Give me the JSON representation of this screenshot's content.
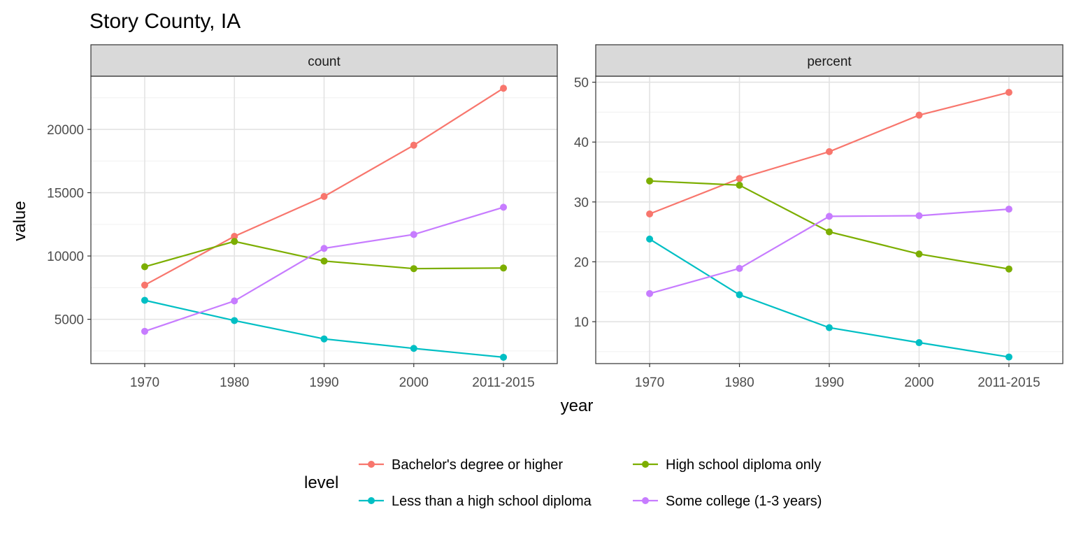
{
  "title": "Story County, IA",
  "chart_data": {
    "type": "line",
    "title": "Story County, IA",
    "xlabel": "year",
    "ylabel": "value",
    "categories": [
      "1970",
      "1980",
      "1990",
      "2000",
      "2011-2015"
    ],
    "legend": {
      "title": "level",
      "placement": "bottom",
      "items": [
        "Bachelor's degree or higher",
        "High school diploma only",
        "Less than a high school diploma",
        "Some college (1-3 years)"
      ]
    },
    "colors": {
      "Bachelor's degree or higher": "#f8766d",
      "High school diploma only": "#7cae00",
      "Less than a high school diploma": "#00bfc4",
      "Some college (1-3 years)": "#c77cff"
    },
    "grid": true,
    "panels": [
      {
        "strip": "count",
        "ylim": [
          1500,
          24200
        ],
        "yticks": [
          5000,
          10000,
          15000,
          20000
        ],
        "series": [
          {
            "name": "Bachelor's degree or higher",
            "values": [
              7700,
              11550,
              14700,
              18750,
              23250
            ]
          },
          {
            "name": "High school diploma only",
            "values": [
              9150,
              11150,
              9600,
              9000,
              9050
            ]
          },
          {
            "name": "Less than a high school diploma",
            "values": [
              6500,
              4900,
              3450,
              2700,
              2000
            ]
          },
          {
            "name": "Some college (1-3 years)",
            "values": [
              4050,
              6450,
              10600,
              11700,
              13850
            ]
          }
        ]
      },
      {
        "strip": "percent",
        "ylim": [
          3,
          51
        ],
        "yticks": [
          10,
          20,
          30,
          40,
          50
        ],
        "series": [
          {
            "name": "Bachelor's degree or higher",
            "values": [
              28.0,
              33.9,
              38.4,
              44.5,
              48.3
            ]
          },
          {
            "name": "High school diploma only",
            "values": [
              33.5,
              32.8,
              25.0,
              21.3,
              18.8
            ]
          },
          {
            "name": "Less than a high school diploma",
            "values": [
              23.8,
              14.5,
              9.0,
              6.5,
              4.1
            ]
          },
          {
            "name": "Some college (1-3 years)",
            "values": [
              14.7,
              18.9,
              27.6,
              27.7,
              28.8
            ]
          }
        ]
      }
    ]
  }
}
